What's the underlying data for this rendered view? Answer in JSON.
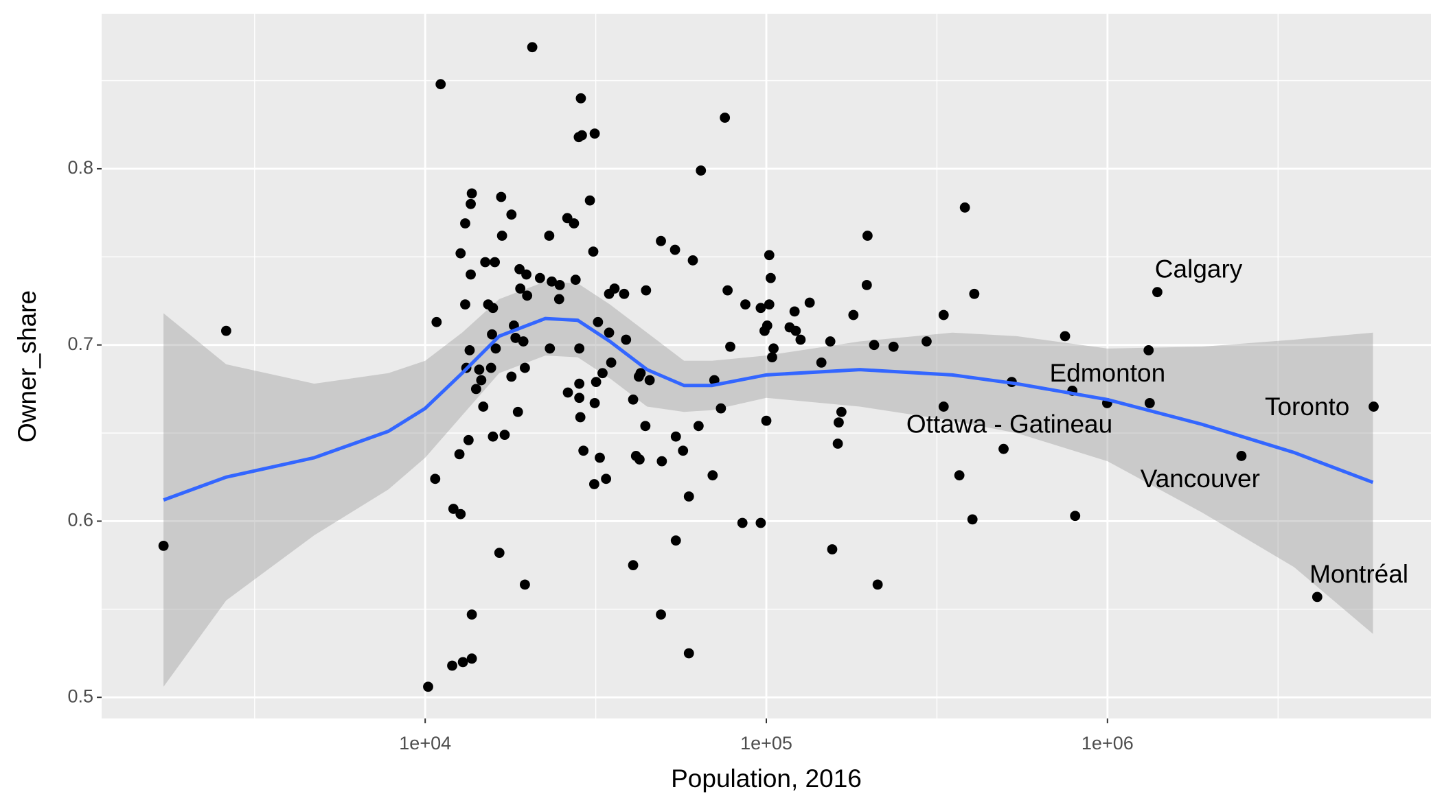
{
  "chart_data": {
    "type": "scatter",
    "x_label": "Population, 2016",
    "y_label": "Owner_share",
    "xscale": "log",
    "xlim": [
      1126,
      8880000
    ],
    "ylim": [
      0.488,
      0.888
    ],
    "xticks": [
      {
        "value": 10000,
        "label": "1e+04"
      },
      {
        "value": 100000,
        "label": "1e+05"
      },
      {
        "value": 1000000,
        "label": "1e+06"
      }
    ],
    "yticks": [
      0.5,
      0.6,
      0.7,
      0.8
    ],
    "xminor": [
      3162.28,
      31622.8,
      316228,
      3162278
    ],
    "yminor": [
      0.55,
      0.65,
      0.75,
      0.85
    ],
    "grid": true,
    "panel_color": "#EBEBEB",
    "point_color": "#000000",
    "x": [
      1710,
      2610,
      10200,
      10700,
      10800,
      11100,
      12000,
      12100,
      12600,
      12700,
      12700,
      12900,
      13100,
      13100,
      13200,
      13400,
      13500,
      13600,
      13600,
      13700,
      13700,
      13700,
      14100,
      14400,
      14600,
      14800,
      15000,
      15300,
      15600,
      15700,
      15800,
      15800,
      16000,
      16100,
      16500,
      16700,
      16800,
      17100,
      17900,
      17900,
      18200,
      18400,
      18700,
      18900,
      19000,
      19400,
      19600,
      19600,
      19800,
      19900,
      20600,
      21700,
      23100,
      23200,
      23500,
      24700,
      24800,
      26100,
      26200,
      27300,
      27600,
      28200,
      28300,
      28300,
      28300,
      28500,
      28600,
      28800,
      29100,
      30400,
      31100,
      31300,
      31400,
      31400,
      31700,
      32100,
      32500,
      33100,
      33900,
      34600,
      34600,
      35100,
      35900,
      38300,
      38800,
      40700,
      40700,
      41500,
      42300,
      42500,
      42800,
      44200,
      44400,
      45500,
      49100,
      49100,
      49400,
      54000,
      54300,
      54300,
      57000,
      59300,
      59300,
      60900,
      63300,
      64300,
      69600,
      70400,
      73600,
      75600,
      77000,
      78400,
      85100,
      86800,
      96300,
      96300,
      98800,
      100000,
      100600,
      102000,
      102000,
      103000,
      104000,
      105000,
      117000,
      121000,
      122000,
      126000,
      134000,
      145000,
      154000,
      156000,
      162000,
      163000,
      166000,
      180000,
      197000,
      198000,
      207000,
      212000,
      236000,
      295000,
      331000,
      331000,
      368000,
      382000,
      402000,
      407000,
      496000,
      524000,
      751000,
      789000,
      804000,
      998000,
      1320000,
      1330000,
      1400000,
      2470000,
      4120000,
      6030000
    ],
    "values": [
      0.586,
      0.708,
      0.506,
      0.624,
      0.713,
      0.848,
      0.518,
      0.607,
      0.638,
      0.604,
      0.752,
      0.52,
      0.769,
      0.723,
      0.687,
      0.646,
      0.697,
      0.78,
      0.74,
      0.547,
      0.522,
      0.786,
      0.675,
      0.686,
      0.68,
      0.665,
      0.747,
      0.723,
      0.687,
      0.706,
      0.648,
      0.721,
      0.747,
      0.698,
      0.582,
      0.784,
      0.762,
      0.649,
      0.774,
      0.682,
      0.711,
      0.704,
      0.662,
      0.743,
      0.732,
      0.702,
      0.687,
      0.564,
      0.74,
      0.728,
      0.869,
      0.738,
      0.762,
      0.698,
      0.736,
      0.726,
      0.734,
      0.772,
      0.673,
      0.769,
      0.737,
      0.818,
      0.67,
      0.698,
      0.678,
      0.659,
      0.84,
      0.819,
      0.64,
      0.782,
      0.753,
      0.621,
      0.82,
      0.667,
      0.679,
      0.713,
      0.636,
      0.684,
      0.624,
      0.729,
      0.707,
      0.69,
      0.732,
      0.729,
      0.703,
      0.669,
      0.575,
      0.637,
      0.682,
      0.635,
      0.684,
      0.654,
      0.731,
      0.68,
      0.759,
      0.547,
      0.634,
      0.754,
      0.648,
      0.589,
      0.64,
      0.614,
      0.525,
      0.748,
      0.654,
      0.799,
      0.626,
      0.68,
      0.664,
      0.829,
      0.731,
      0.699,
      0.599,
      0.723,
      0.599,
      0.721,
      0.708,
      0.657,
      0.711,
      0.751,
      0.723,
      0.738,
      0.693,
      0.698,
      0.71,
      0.719,
      0.708,
      0.703,
      0.724,
      0.69,
      0.702,
      0.584,
      0.644,
      0.656,
      0.662,
      0.717,
      0.734,
      0.762,
      0.7,
      0.564,
      0.699,
      0.702,
      0.717,
      0.665,
      0.626,
      0.778,
      0.601,
      0.729,
      0.641,
      0.679,
      0.705,
      0.674,
      0.603,
      0.667,
      0.697,
      0.667,
      0.73,
      0.637,
      0.557,
      0.665
    ],
    "smooth": {
      "color": "#3366FF",
      "ribbon_color": "#999999",
      "ribbon_alpha": 0.4,
      "x": [
        1710,
        2610,
        4730,
        7800,
        10000,
        12830,
        16480,
        22500,
        28000,
        34800,
        44700,
        57400,
        69200,
        100000,
        188000,
        351000,
        542000,
        1000000,
        1890000,
        3520000,
        6000000
      ],
      "y": [
        0.612,
        0.625,
        0.636,
        0.651,
        0.664,
        0.684,
        0.705,
        0.715,
        0.714,
        0.702,
        0.686,
        0.677,
        0.677,
        0.683,
        0.686,
        0.683,
        0.678,
        0.669,
        0.655,
        0.639,
        0.622
      ],
      "ymin": [
        0.506,
        0.555,
        0.592,
        0.618,
        0.636,
        0.66,
        0.684,
        0.694,
        0.693,
        0.681,
        0.665,
        0.662,
        0.663,
        0.67,
        0.665,
        0.657,
        0.65,
        0.634,
        0.605,
        0.574,
        0.536
      ],
      "ymax": [
        0.718,
        0.689,
        0.678,
        0.684,
        0.691,
        0.707,
        0.726,
        0.736,
        0.735,
        0.723,
        0.707,
        0.691,
        0.691,
        0.694,
        0.702,
        0.707,
        0.705,
        0.698,
        0.699,
        0.703,
        0.707
      ]
    },
    "annotations": [
      {
        "text": "Calgary",
        "x": 1850000,
        "y": 0.742
      },
      {
        "text": "Edmonton",
        "x": 1000000,
        "y": 0.683
      },
      {
        "text": "Ottawa - Gatineau",
        "x": 516000,
        "y": 0.654
      },
      {
        "text": "Toronto",
        "x": 3850000,
        "y": 0.664
      },
      {
        "text": "Vancouver",
        "x": 1870000,
        "y": 0.623
      },
      {
        "text": "Montréal",
        "x": 5460000,
        "y": 0.569
      }
    ]
  }
}
